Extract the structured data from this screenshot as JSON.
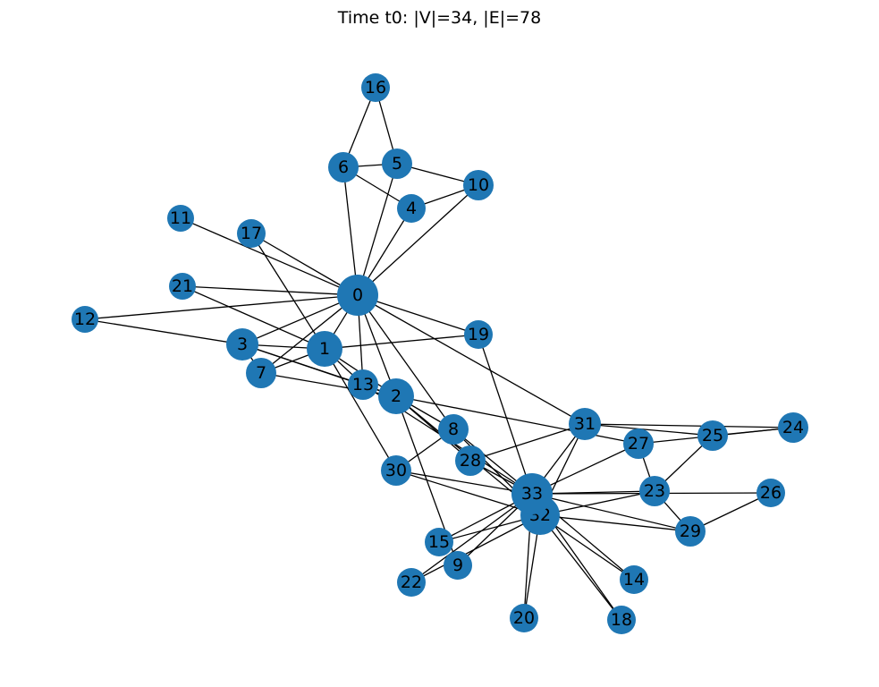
{
  "title": "Time t0: |V|=34, |E|=78",
  "graph": {
    "node_color": "#1f77b4",
    "edge_color": "#000000",
    "label_color": "#000000",
    "nodes": [
      "0",
      "1",
      "2",
      "3",
      "4",
      "5",
      "6",
      "7",
      "8",
      "9",
      "10",
      "11",
      "12",
      "13",
      "14",
      "15",
      "16",
      "17",
      "18",
      "19",
      "20",
      "21",
      "22",
      "23",
      "24",
      "25",
      "26",
      "27",
      "28",
      "29",
      "30",
      "31",
      "32",
      "33"
    ],
    "edges": [
      [
        "0",
        "1"
      ],
      [
        "0",
        "2"
      ],
      [
        "0",
        "3"
      ],
      [
        "0",
        "4"
      ],
      [
        "0",
        "5"
      ],
      [
        "0",
        "6"
      ],
      [
        "0",
        "7"
      ],
      [
        "0",
        "8"
      ],
      [
        "0",
        "10"
      ],
      [
        "0",
        "11"
      ],
      [
        "0",
        "12"
      ],
      [
        "0",
        "13"
      ],
      [
        "0",
        "17"
      ],
      [
        "0",
        "19"
      ],
      [
        "0",
        "21"
      ],
      [
        "0",
        "31"
      ],
      [
        "1",
        "2"
      ],
      [
        "1",
        "3"
      ],
      [
        "1",
        "7"
      ],
      [
        "1",
        "13"
      ],
      [
        "1",
        "17"
      ],
      [
        "1",
        "19"
      ],
      [
        "1",
        "21"
      ],
      [
        "1",
        "30"
      ],
      [
        "2",
        "3"
      ],
      [
        "2",
        "7"
      ],
      [
        "2",
        "8"
      ],
      [
        "2",
        "9"
      ],
      [
        "2",
        "13"
      ],
      [
        "2",
        "27"
      ],
      [
        "2",
        "28"
      ],
      [
        "2",
        "32"
      ],
      [
        "3",
        "7"
      ],
      [
        "3",
        "12"
      ],
      [
        "3",
        "13"
      ],
      [
        "4",
        "6"
      ],
      [
        "4",
        "10"
      ],
      [
        "5",
        "6"
      ],
      [
        "5",
        "10"
      ],
      [
        "5",
        "16"
      ],
      [
        "6",
        "16"
      ],
      [
        "8",
        "30"
      ],
      [
        "8",
        "32"
      ],
      [
        "8",
        "33"
      ],
      [
        "9",
        "33"
      ],
      [
        "13",
        "33"
      ],
      [
        "14",
        "32"
      ],
      [
        "14",
        "33"
      ],
      [
        "15",
        "32"
      ],
      [
        "15",
        "33"
      ],
      [
        "18",
        "32"
      ],
      [
        "18",
        "33"
      ],
      [
        "19",
        "33"
      ],
      [
        "20",
        "32"
      ],
      [
        "20",
        "33"
      ],
      [
        "22",
        "32"
      ],
      [
        "22",
        "33"
      ],
      [
        "23",
        "25"
      ],
      [
        "23",
        "27"
      ],
      [
        "23",
        "29"
      ],
      [
        "23",
        "32"
      ],
      [
        "23",
        "33"
      ],
      [
        "24",
        "25"
      ],
      [
        "24",
        "27"
      ],
      [
        "24",
        "31"
      ],
      [
        "25",
        "31"
      ],
      [
        "26",
        "29"
      ],
      [
        "26",
        "33"
      ],
      [
        "27",
        "33"
      ],
      [
        "28",
        "31"
      ],
      [
        "28",
        "33"
      ],
      [
        "29",
        "32"
      ],
      [
        "29",
        "33"
      ],
      [
        "30",
        "32"
      ],
      [
        "30",
        "33"
      ],
      [
        "31",
        "32"
      ],
      [
        "31",
        "33"
      ],
      [
        "32",
        "33"
      ]
    ]
  }
}
